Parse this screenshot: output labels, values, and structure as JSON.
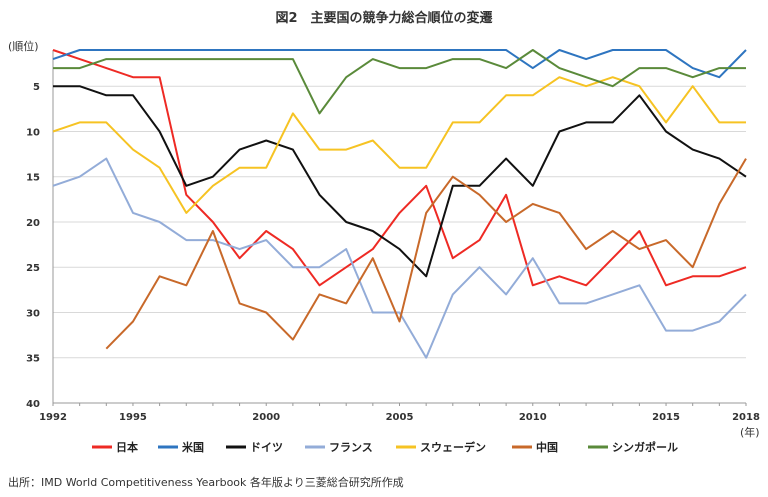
{
  "chart_data": {
    "type": "line",
    "title": "図2　主要国の競争力総合順位の変遷",
    "ylabel": "(順位)",
    "xlabel": "(年)",
    "xlim": [
      1992,
      2018
    ],
    "ylim": [
      1,
      40
    ],
    "y_inverted": true,
    "y_ticks": [
      5,
      10,
      15,
      20,
      25,
      30,
      35,
      40
    ],
    "x_ticks": [
      1992,
      1995,
      2000,
      2005,
      2010,
      2015,
      2018
    ],
    "grid": "horizontal",
    "legend_position": "bottom",
    "x": [
      1992,
      1993,
      1994,
      1995,
      1996,
      1997,
      1998,
      1999,
      2000,
      2001,
      2002,
      2003,
      2004,
      2005,
      2006,
      2007,
      2008,
      2009,
      2010,
      2011,
      2012,
      2013,
      2014,
      2015,
      2016,
      2017,
      2018
    ],
    "series": [
      {
        "name": "日本",
        "color": "#ee2a24",
        "values": [
          1,
          2,
          3,
          4,
          4,
          17,
          20,
          24,
          21,
          23,
          27,
          25,
          23,
          19,
          16,
          24,
          22,
          17,
          27,
          26,
          27,
          24,
          21,
          27,
          26,
          26,
          25
        ]
      },
      {
        "name": "米国",
        "color": "#2e75c0",
        "values": [
          2,
          1,
          1,
          1,
          1,
          1,
          1,
          1,
          1,
          1,
          1,
          1,
          1,
          1,
          1,
          1,
          1,
          1,
          3,
          1,
          2,
          1,
          1,
          1,
          3,
          4,
          1
        ]
      },
      {
        "name": "ドイツ",
        "color": "#111111",
        "values": [
          5,
          5,
          6,
          6,
          10,
          16,
          15,
          12,
          11,
          12,
          17,
          20,
          21,
          23,
          26,
          16,
          16,
          13,
          16,
          10,
          9,
          9,
          6,
          10,
          12,
          13,
          15
        ]
      },
      {
        "name": "フランス",
        "color": "#93acd8",
        "values": [
          16,
          15,
          13,
          19,
          20,
          22,
          22,
          23,
          22,
          25,
          25,
          23,
          30,
          30,
          35,
          28,
          25,
          28,
          24,
          29,
          29,
          28,
          27,
          32,
          32,
          31,
          28
        ]
      },
      {
        "name": "スウェーデン",
        "color": "#f6c323",
        "values": [
          10,
          9,
          9,
          12,
          14,
          19,
          16,
          14,
          14,
          8,
          12,
          12,
          11,
          14,
          14,
          9,
          9,
          6,
          6,
          4,
          5,
          4,
          5,
          9,
          5,
          9,
          9
        ]
      },
      {
        "name": "中国",
        "color": "#c8692a",
        "values": [
          null,
          null,
          34,
          31,
          26,
          27,
          21,
          29,
          30,
          33,
          28,
          29,
          24,
          31,
          19,
          15,
          17,
          20,
          18,
          19,
          23,
          21,
          23,
          22,
          25,
          18,
          13
        ]
      },
      {
        "name": "シンガポール",
        "color": "#5a8a3a",
        "values": [
          3,
          3,
          2,
          2,
          2,
          2,
          2,
          2,
          2,
          2,
          8,
          4,
          2,
          3,
          3,
          2,
          2,
          3,
          1,
          3,
          4,
          5,
          3,
          3,
          4,
          3,
          3
        ]
      }
    ]
  },
  "source": "出所：IMD World Competitiveness Yearbook 各年版より三菱総合研究所作成"
}
